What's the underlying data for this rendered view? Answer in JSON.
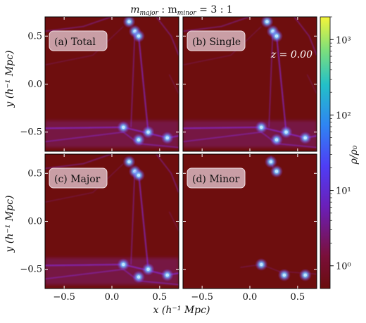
{
  "figure": {
    "title_main": "m",
    "title_sub1": "major",
    "title_sep": " : m",
    "title_sub2": "minor",
    "title_ratio": " = 3 : 1",
    "redshift_label": "z = 0.00",
    "xlabel": "x (h⁻¹ Mpc)",
    "ylabel": "y (h⁻¹ Mpc)",
    "colorbar_label": "ρ/ρ₀"
  },
  "colors": {
    "background": "#6e0e0e",
    "filament": "#8a2be2",
    "halo_core": "#bfe6ff"
  },
  "chart_data": {
    "type": "heatmap",
    "xlim": [
      -0.7,
      0.7
    ],
    "ylim": [
      -0.7,
      0.7
    ],
    "xticks": [
      -0.5,
      0.0,
      0.5
    ],
    "xtick_labels": [
      "−0.5",
      "0.0",
      "0.5"
    ],
    "yticks": [
      -0.5,
      0.0,
      0.5
    ],
    "ytick_labels": [
      "−0.5",
      "0.0",
      "0.5"
    ],
    "colorbar": {
      "scale": "log",
      "range": [
        0.5,
        2000
      ],
      "ticks": [
        1,
        10,
        100,
        1000
      ],
      "tick_labels": [
        "10⁰",
        "10¹",
        "10²",
        "10³"
      ]
    },
    "panels": [
      {
        "id": "total",
        "label": "(a) Total",
        "filaments": "all",
        "halos": [
          [
            0.18,
            0.65
          ],
          [
            0.24,
            0.55
          ],
          [
            0.28,
            0.5
          ],
          [
            0.12,
            -0.45
          ],
          [
            0.28,
            -0.58
          ],
          [
            0.38,
            -0.5
          ],
          [
            0.58,
            -0.56
          ]
        ]
      },
      {
        "id": "single",
        "label": "(b) Single",
        "filaments": "all",
        "halos": [
          [
            0.18,
            0.65
          ],
          [
            0.24,
            0.55
          ],
          [
            0.28,
            0.5
          ],
          [
            0.12,
            -0.45
          ],
          [
            0.28,
            -0.58
          ],
          [
            0.38,
            -0.5
          ],
          [
            0.58,
            -0.56
          ]
        ]
      },
      {
        "id": "major",
        "label": "(c) Major",
        "filaments": "all",
        "halos": [
          [
            0.18,
            0.62
          ],
          [
            0.24,
            0.52
          ],
          [
            0.28,
            0.48
          ],
          [
            0.12,
            -0.45
          ],
          [
            0.28,
            -0.58
          ],
          [
            0.38,
            -0.5
          ],
          [
            0.58,
            -0.56
          ]
        ]
      },
      {
        "id": "minor",
        "label": "(d) Minor",
        "filaments": "sparse",
        "halos": [
          [
            0.22,
            0.62
          ],
          [
            0.28,
            0.52
          ],
          [
            0.12,
            -0.45
          ],
          [
            0.36,
            -0.56
          ],
          [
            0.58,
            -0.56
          ]
        ]
      }
    ]
  }
}
